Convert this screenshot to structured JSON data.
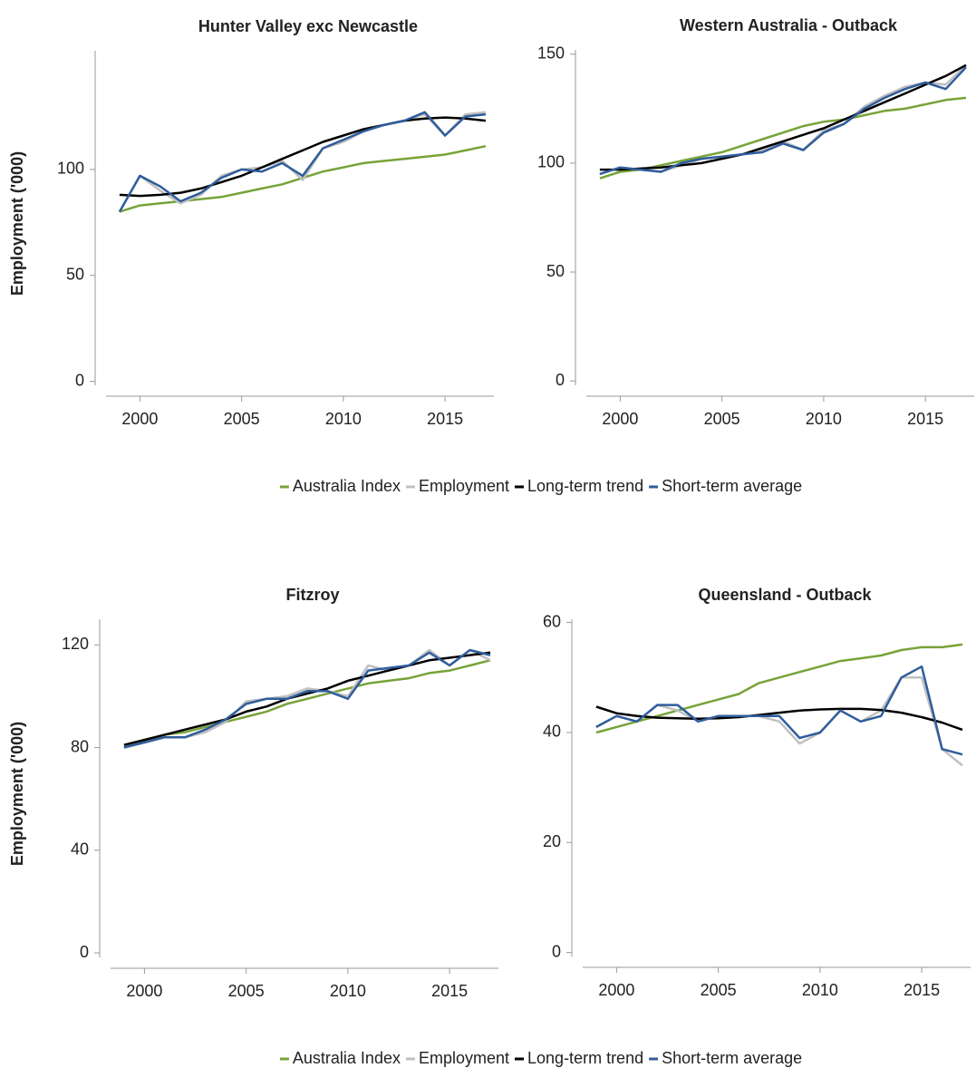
{
  "chart_data": [
    {
      "type": "line",
      "title": "Hunter Valley exc Newcastle",
      "ylabel": "Employment ('000)",
      "legend": "bottom",
      "x": [
        1999,
        2000,
        2001,
        2002,
        2003,
        2004,
        2005,
        2006,
        2007,
        2008,
        2009,
        2010,
        2011,
        2012,
        2013,
        2014,
        2015,
        2016,
        2017
      ],
      "xlim": [
        1997.8,
        2017.4
      ],
      "xticks": [
        2000,
        2005,
        2010,
        2015
      ],
      "ylim": [
        -7,
        156
      ],
      "yticks": [
        0,
        50,
        100
      ],
      "series": [
        {
          "name": "Australia Index",
          "color": "#77a339",
          "values": [
            80,
            83,
            84,
            85,
            86,
            87,
            89,
            91,
            93,
            96,
            99,
            101,
            103,
            104,
            105,
            106,
            107,
            109,
            111
          ]
        },
        {
          "name": "Employment",
          "color": "#c0c0c0",
          "values": [
            80,
            97,
            90,
            84,
            88,
            97,
            100,
            101,
            104,
            95,
            110,
            113,
            118,
            121,
            123,
            126,
            116,
            126,
            127
          ]
        },
        {
          "name": "Long-term trend",
          "color": "#000000",
          "values": [
            88,
            87.5,
            88,
            89,
            91,
            94,
            97,
            101,
            105,
            109,
            113,
            116,
            119,
            121,
            123,
            124,
            124.5,
            124,
            123
          ]
        },
        {
          "name": "Short-term average",
          "color": "#2f5d9c",
          "values": [
            80,
            97,
            92,
            85,
            89,
            96,
            100,
            99,
            103,
            97,
            110,
            114,
            118,
            121,
            123,
            127,
            116,
            125,
            126
          ]
        }
      ]
    },
    {
      "type": "line",
      "title": "Western Australia - Outback",
      "x": [
        1999,
        2000,
        2001,
        2002,
        2003,
        2004,
        2005,
        2006,
        2007,
        2008,
        2009,
        2010,
        2011,
        2012,
        2013,
        2014,
        2015,
        2016,
        2017
      ],
      "xlim": [
        1997.8,
        2017.4
      ],
      "xticks": [
        2000,
        2005,
        2010,
        2015
      ],
      "ylim": [
        -7,
        152
      ],
      "yticks": [
        0,
        50,
        100,
        150
      ],
      "series": [
        {
          "name": "Australia Index",
          "color": "#77a339",
          "values": [
            93,
            96,
            97,
            99,
            101,
            103,
            105,
            108,
            111,
            114,
            117,
            119,
            120,
            122,
            124,
            125,
            127,
            129,
            130
          ]
        },
        {
          "name": "Employment",
          "color": "#c0c0c0",
          "values": [
            95,
            98,
            97,
            96,
            99,
            102,
            103,
            104,
            106,
            110,
            106,
            115,
            118,
            126,
            131,
            135,
            137,
            136,
            145
          ]
        },
        {
          "name": "Long-term trend",
          "color": "#000000",
          "values": [
            97,
            97,
            97.5,
            98,
            99,
            100,
            102,
            104,
            107,
            110,
            113,
            116,
            120,
            124,
            128,
            132,
            136,
            140,
            145
          ]
        },
        {
          "name": "Short-term average",
          "color": "#2f5d9c",
          "values": [
            95,
            98,
            97,
            96,
            100,
            102,
            103,
            104,
            105,
            109,
            106,
            114,
            118,
            125,
            130,
            134,
            137,
            134,
            144
          ]
        }
      ]
    },
    {
      "type": "line",
      "title": "Fitzroy",
      "ylabel": "Employment ('000)",
      "legend": "bottom",
      "x": [
        1999,
        2000,
        2001,
        2002,
        2003,
        2004,
        2005,
        2006,
        2007,
        2008,
        2009,
        2010,
        2011,
        2012,
        2013,
        2014,
        2015,
        2016,
        2017
      ],
      "xlim": [
        1997.8,
        2017.4
      ],
      "xticks": [
        2000,
        2005,
        2010,
        2015
      ],
      "ylim": [
        -6,
        130
      ],
      "yticks": [
        0,
        40,
        80,
        120
      ],
      "series": [
        {
          "name": "Australia Index",
          "color": "#77a339",
          "values": [
            81,
            83,
            85,
            86,
            88,
            90,
            92,
            94,
            97,
            99,
            101,
            103,
            105,
            106,
            107,
            109,
            110,
            112,
            114
          ]
        },
        {
          "name": "Employment",
          "color": "#c0c0c0",
          "values": [
            80,
            82,
            84,
            84,
            86,
            90,
            98,
            99,
            100,
            103,
            102,
            100,
            112,
            110,
            112,
            118,
            112,
            118,
            114
          ]
        },
        {
          "name": "Long-term trend",
          "color": "#000000",
          "values": [
            81,
            83,
            85,
            87,
            89,
            91,
            94,
            96,
            99,
            101,
            103,
            106,
            108,
            110,
            112,
            114,
            115,
            116,
            117
          ]
        },
        {
          "name": "Short-term average",
          "color": "#2f5d9c",
          "values": [
            80,
            82,
            84,
            84,
            87,
            91,
            97,
            99,
            99,
            102,
            102,
            99,
            110,
            111,
            112,
            117,
            112,
            118,
            116
          ]
        }
      ]
    },
    {
      "type": "line",
      "title": "Queensland - Outback",
      "x": [
        1999,
        2000,
        2001,
        2002,
        2003,
        2004,
        2005,
        2006,
        2007,
        2008,
        2009,
        2010,
        2011,
        2012,
        2013,
        2014,
        2015,
        2016,
        2017
      ],
      "xlim": [
        1997.8,
        2017.4
      ],
      "xticks": [
        2000,
        2005,
        2010,
        2015
      ],
      "ylim": [
        -2.7,
        60.6
      ],
      "yticks": [
        0,
        20,
        40,
        60
      ],
      "series": [
        {
          "name": "Australia Index",
          "color": "#77a339",
          "values": [
            40,
            41,
            42,
            43,
            44,
            45,
            46,
            47,
            49,
            50,
            51,
            52,
            53,
            53.5,
            54,
            55,
            55.5,
            55.5,
            56
          ]
        },
        {
          "name": "Employment",
          "color": "#c0c0c0",
          "values": [
            41,
            43,
            42,
            45,
            44,
            42,
            43,
            43,
            43,
            42,
            38,
            40,
            44,
            42,
            44,
            50,
            50,
            37,
            34
          ]
        },
        {
          "name": "Long-term trend",
          "color": "#000000",
          "values": [
            44.7,
            43.5,
            43,
            42.7,
            42.6,
            42.5,
            42.6,
            42.8,
            43.2,
            43.6,
            44,
            44.2,
            44.3,
            44.3,
            44.1,
            43.6,
            42.8,
            41.8,
            40.5
          ]
        },
        {
          "name": "Short-term average",
          "color": "#2f5d9c",
          "values": [
            41,
            43,
            42,
            45,
            45,
            42,
            43,
            43,
            43,
            43,
            39,
            40,
            44,
            42,
            43,
            50,
            52,
            37,
            36
          ]
        }
      ]
    }
  ]
}
